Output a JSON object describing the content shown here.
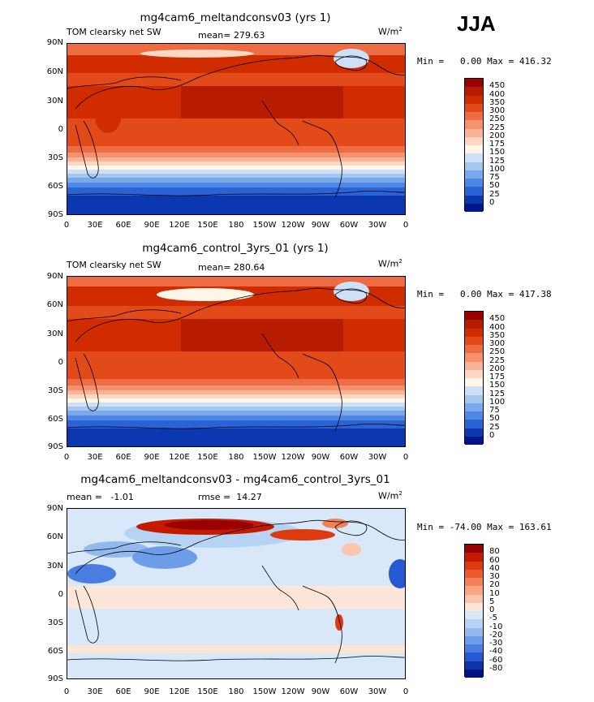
{
  "season": "JJA",
  "panels": [
    {
      "id": "p1",
      "title": "mg4cam6_meltandconsv03 (yrs 1)",
      "left_label": "TOM clearsky net SW",
      "stat_label": "mean=",
      "stat_value": "279.63",
      "units": "W/m",
      "units_sup": "2",
      "min_max": "Min =   0.00 Max = 416.32",
      "levels": [
        "450",
        "400",
        "350",
        "300",
        "250",
        "225",
        "200",
        "175",
        "150",
        "125",
        "100",
        "75",
        "50",
        "25",
        "0"
      ],
      "colors": [
        "#9b0000",
        "#b71b00",
        "#d12c00",
        "#e24a1a",
        "#ee6c44",
        "#f5916c",
        "#f9b497",
        "#fcd7c1",
        "#fff6ea",
        "#cde0f7",
        "#a4c7f0",
        "#7aa9eb",
        "#4e87e5",
        "#2963d6",
        "#0b38b0",
        "#00168a"
      ]
    },
    {
      "id": "p2",
      "title": "mg4cam6_control_3yrs_01 (yrs 1)",
      "left_label": "TOM clearsky net SW",
      "stat_label": "mean=",
      "stat_value": "280.64",
      "units": "W/m",
      "units_sup": "2",
      "min_max": "Min =   0.00 Max = 417.38",
      "levels": [
        "450",
        "400",
        "350",
        "300",
        "250",
        "225",
        "200",
        "175",
        "150",
        "125",
        "100",
        "75",
        "50",
        "25",
        "0"
      ],
      "colors": [
        "#9b0000",
        "#b71b00",
        "#d12c00",
        "#e24a1a",
        "#ee6c44",
        "#f5916c",
        "#f9b497",
        "#fcd7c1",
        "#fff6ea",
        "#cde0f7",
        "#a4c7f0",
        "#7aa9eb",
        "#4e87e5",
        "#2963d6",
        "#0b38b0",
        "#00168a"
      ]
    },
    {
      "id": "p3",
      "title": "mg4cam6_meltandconsv03 - mg4cam6_control_3yrs_01",
      "left_label": "mean =   -1.01",
      "stat_label": "rmse =",
      "stat_value": "14.27",
      "units": "W/m",
      "units_sup": "2",
      "min_max": "Min = -74.00 Max = 163.61",
      "levels": [
        "80",
        "60",
        "40",
        "30",
        "20",
        "10",
        "5",
        "0",
        "-5",
        "-10",
        "-20",
        "-30",
        "-40",
        "-60",
        "-80"
      ],
      "colors": [
        "#9b0000",
        "#c41a00",
        "#de3a10",
        "#ec5a2c",
        "#f38158",
        "#f8a584",
        "#fbc6ad",
        "#fde5d8",
        "#d8e8f9",
        "#b7d3f4",
        "#93baee",
        "#6d9ce8",
        "#4a7de1",
        "#2659d2",
        "#0c33a8",
        "#00127f"
      ]
    }
  ],
  "y_ticks": [
    "90N",
    "60N",
    "30N",
    "0",
    "30S",
    "60S",
    "90S"
  ],
  "x_ticks": [
    "0",
    "30E",
    "60E",
    "90E",
    "120E",
    "150E",
    "180",
    "150W",
    "120W",
    "90W",
    "60W",
    "30W",
    "0"
  ]
}
